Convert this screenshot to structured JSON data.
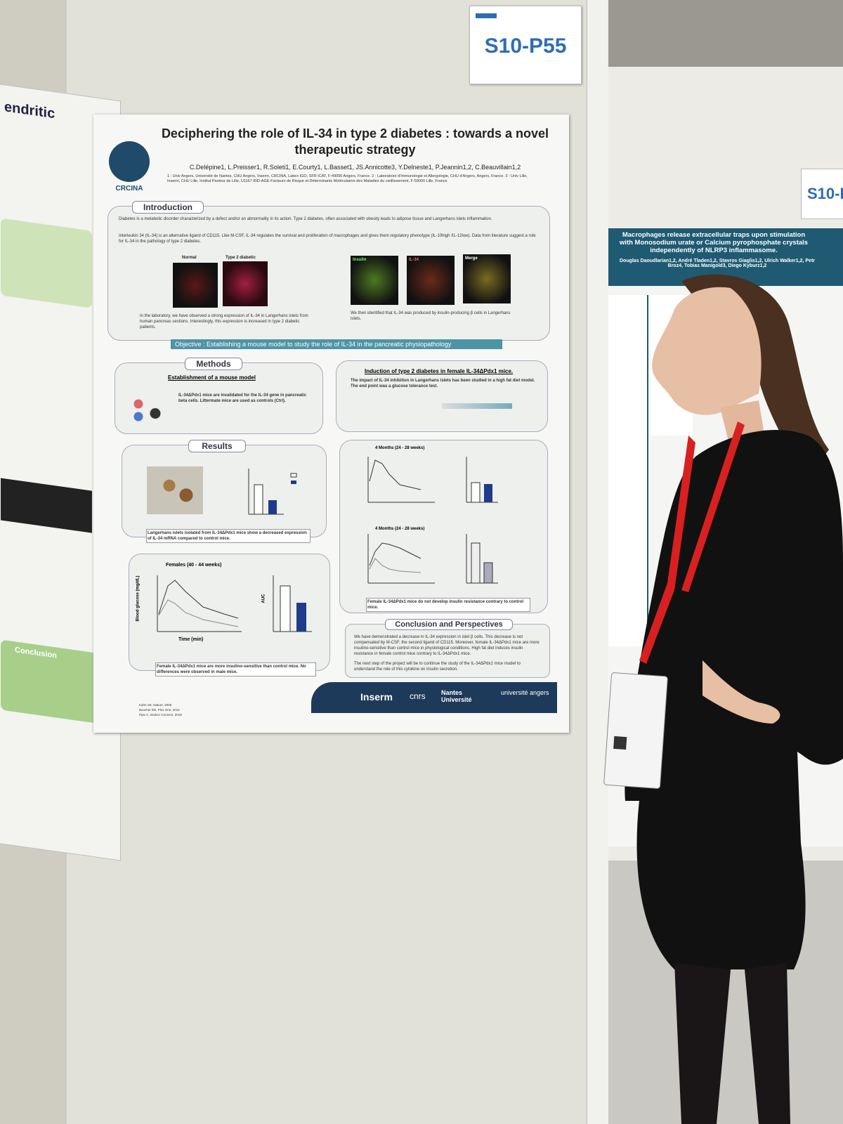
{
  "sign": {
    "label": "S10-P55"
  },
  "poster": {
    "title": "Deciphering the role of IL-34 in type 2 diabetes : towards a novel therapeutic strategy",
    "authors": "C.Delépine1, L.Preisser1, R.Soleti1, E.Courty1, L.Basset1, JS.Annicotte3, Y.Delneste1, P.Jeannin1,2, C.Beauvillain1,2",
    "affiliations": "1 : Univ Angers, Université de Nantes, CHU Angers, Inserm, CRCINA, Labex IGO, SFR ICAT, F-49000 Angers, France. 2 : Laboratoire d'Immunologie et Allergologie, CHU d'Angers, Angers, France. 3 : Univ Lille, Inserm, CHU Lille, Institut Pasteur de Lille, U1167-RID-AGE-Facteurs de Risque et Déterminants Moléculaires des Maladies du vieillissement, F-59000 Lille, France",
    "logo": "CRCINA",
    "introduction": {
      "heading": "Introduction",
      "paragraphs": [
        "Diabetes is a metabolic disorder characterized by a defect and/or an abnormality in its action. Type 2 diabetes, often associated with obesity leads to adipose tissue and Langerhans islets inflammation.",
        "Interleukin 34 (IL-34) is an alternative ligand of CD115. Like M-CSF, IL-34 regulates the survival and proliferation of macrophages and gives them regulatory phenotype (IL-10high /IL-12low). Data from literature suggest a role for IL-34 in the pathology of type 2 diabetes."
      ],
      "image_labels": [
        "Normal",
        "Type 2 diabetic",
        "Insulin",
        "IL-34",
        "Merge"
      ],
      "captions": [
        "In the laboratory, we have observed a strong expression of IL-34 in Langerhans islets from human pancreas sections. Interestingly, this expression is increased in type 2 diabetic patients.",
        "We then identified that IL-34 was produced by insulin-producing β cells in Langerhans islets."
      ]
    },
    "objective": "Objective : Establishing a mouse model to study the role of IL-34 in the pancreatic physiopathology",
    "methods": {
      "heading": "Methods",
      "subheading": "Establishment of a mouse model",
      "text": "IL-34ΔPdx1 mice are invalidated for the IL-34 gene in pancreatic beta cells. Littermate mice are used as controls (Ctrl).",
      "induction_heading": "Induction of type 2 diabetes in female IL-34ΔPdx1 mice.",
      "induction_text": "The impact of IL-34 inhibition in Langerhans islets has been studied in a high fat diet model. The end point was a glucose tolerance test."
    },
    "results": {
      "heading": "Results",
      "caption_islets": "Langerhans islets isolated from IL-34ΔPdx1 mice show a decreased expression of IL-34 mRNA compared to control mice.",
      "caption_females": "Female IL-34ΔPdx1 mice are more insulino-sensitive than control mice. No differences were observed in male mice.",
      "caption_hfd": "Female IL-34ΔPdx1 mice do not develop insulin resistance contrary to control mice.",
      "chart_titles": [
        "Females (40 - 44 weeks)",
        "4 Months (24 - 28 weeks)",
        "4 Months (24 - 28 weeks)"
      ],
      "x_label": "Time (min)",
      "y_label": "Blood glucose (mg/dL)",
      "auc_label": "AUC"
    },
    "conclusion": {
      "heading": "Conclusion and Perspectives",
      "paragraphs": [
        "We have demonstrated a decrease in IL-34 expression in islet β cells. This decrease is not compensated by M-CSF, the second ligand of CD115. Moreover, female IL-34ΔPdx1 mice are more insulino-sensitive than control mice in physiological conditions. High fat diet induces insulin resistance in female control mice contrary to IL-34ΔPdx1 mice.",
        "The next step of the project will be to continue the study of the IL-34ΔPdx1 mice model to understand the role of this cytokine on insulin secretion."
      ]
    },
    "references": [
      "Kahn SE, Nature, 2006",
      "Boucher ED, Plos One, 2012",
      "Piao C, Endocr Connect, 2019"
    ],
    "partner_logos": [
      "Inserm",
      "cnrs",
      "Nantes Université",
      "université angers"
    ]
  },
  "neighbor_right": {
    "sign": "S10-P",
    "title": "Macrophages release extracellular traps upon stimulation with Monosodium urate or Calcium pyrophosphate crystals independently of NLRP3 inflammasome.",
    "authors": "Douglas Daoudlarian1,2, André Tladen1,2, Stavros Giaglis1,2, Ulrich Walker1,2, Petr Broz4, Tobias Manigold3, Diego Kyburz1,2"
  },
  "neighbor_left": {
    "fragment": "endritic",
    "conclusion": "Conclusion"
  }
}
